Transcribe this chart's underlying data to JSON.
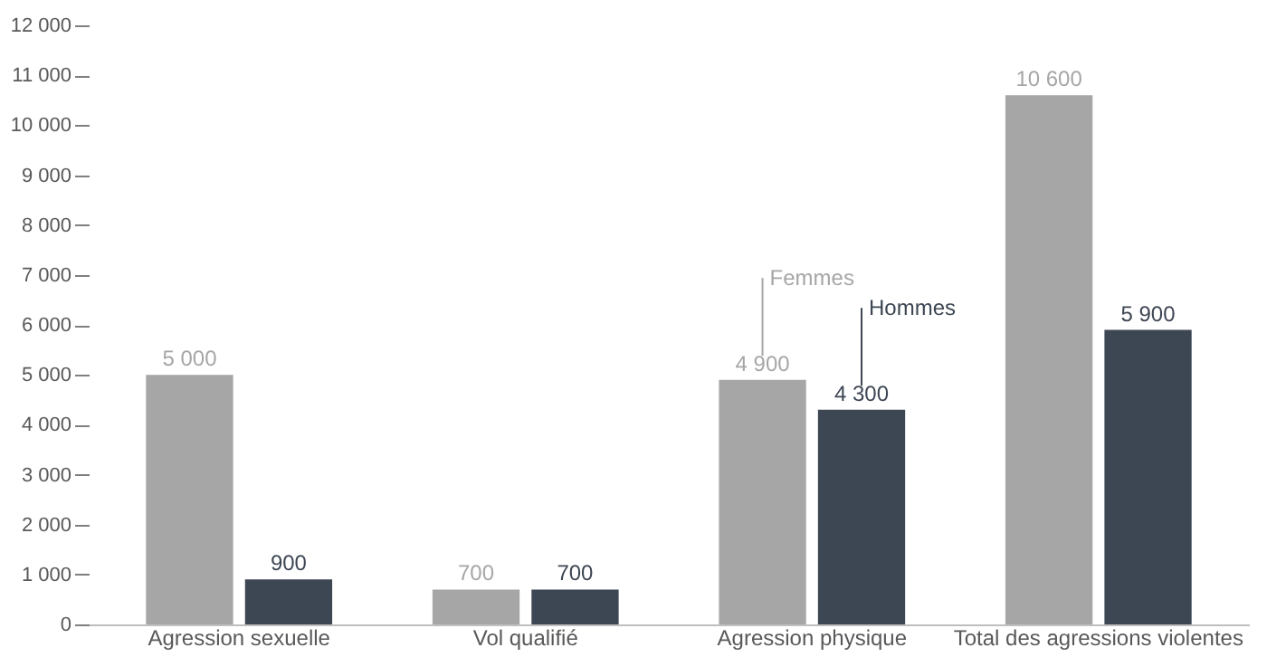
{
  "chart_data": {
    "type": "bar",
    "categories": [
      "Agression sexuelle",
      "Vol qualifié",
      "Agression physique",
      "Total des agressions violentes"
    ],
    "series": [
      {
        "name": "Femmes",
        "color": "#a6a6a6",
        "values": [
          5000,
          700,
          4900,
          10600
        ]
      },
      {
        "name": "Hommes",
        "color": "#3d4653",
        "values": [
          900,
          700,
          4300,
          5900
        ]
      }
    ],
    "ylim": [
      0,
      12000
    ],
    "yticks": [
      0,
      1000,
      2000,
      3000,
      4000,
      5000,
      6000,
      7000,
      8000,
      9000,
      10000,
      11000,
      12000
    ],
    "data_labels": true,
    "grid": false,
    "legend": false
  }
}
